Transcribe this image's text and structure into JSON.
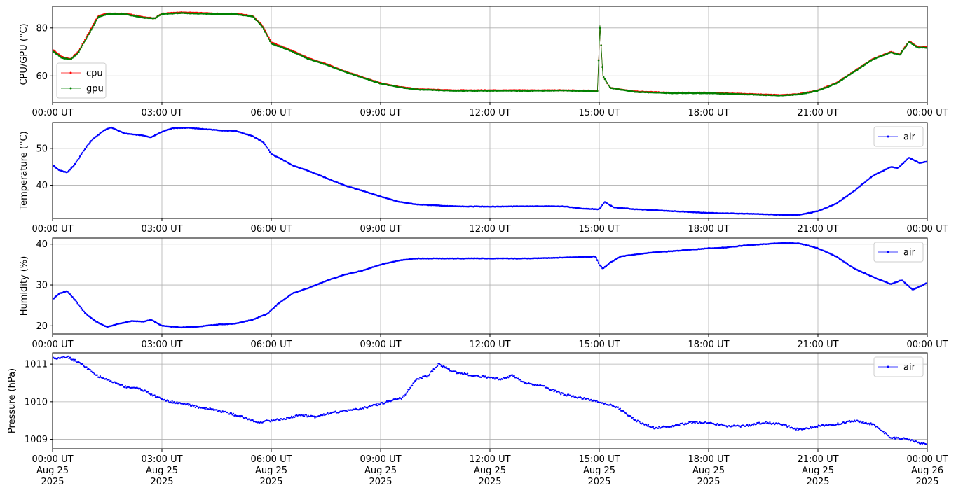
{
  "x_axis": {
    "range_hours": [
      0,
      24
    ],
    "ticks_hours": [
      0,
      3,
      6,
      9,
      12,
      15,
      18,
      21,
      24
    ],
    "time_labels": [
      "00:00 UT",
      "03:00 UT",
      "06:00 UT",
      "09:00 UT",
      "12:00 UT",
      "15:00 UT",
      "18:00 UT",
      "21:00 UT",
      "00:00 UT"
    ],
    "date_labels": [
      "Aug 25",
      "Aug 25",
      "Aug 25",
      "Aug 25",
      "Aug 25",
      "Aug 25",
      "Aug 25",
      "Aug 25",
      "Aug 26"
    ],
    "year_labels": [
      "2025",
      "2025",
      "2025",
      "2025",
      "2025",
      "2025",
      "2025",
      "2025",
      "2025"
    ]
  },
  "chart_data": [
    {
      "type": "line",
      "ylabel": "CPU/GPU (°C)",
      "ylim": [
        49,
        89
      ],
      "yticks": [
        60,
        80
      ],
      "grid": true,
      "legend": "lower-left",
      "series": [
        {
          "name": "cpu",
          "color": "#ff0000",
          "points": [
            [
              0,
              71
            ],
            [
              0.25,
              68
            ],
            [
              0.5,
              67
            ],
            [
              0.7,
              70
            ],
            [
              1,
              78
            ],
            [
              1.25,
              85
            ],
            [
              1.5,
              86
            ],
            [
              2,
              86
            ],
            [
              2.5,
              84.5
            ],
            [
              2.8,
              84
            ],
            [
              3,
              86
            ],
            [
              3.5,
              86.5
            ],
            [
              4,
              86.3
            ],
            [
              4.5,
              86
            ],
            [
              5,
              86
            ],
            [
              5.5,
              85
            ],
            [
              5.75,
              81
            ],
            [
              6,
              74
            ],
            [
              6.5,
              71
            ],
            [
              7,
              67.5
            ],
            [
              7.5,
              65
            ],
            [
              8,
              62
            ],
            [
              8.5,
              59.5
            ],
            [
              9,
              57
            ],
            [
              9.5,
              55.5
            ],
            [
              10,
              54.5
            ],
            [
              11,
              54
            ],
            [
              12,
              54
            ],
            [
              13,
              54
            ],
            [
              14,
              54
            ],
            [
              14.95,
              53.8
            ],
            [
              15.02,
              81
            ],
            [
              15.1,
              60
            ],
            [
              15.3,
              55
            ],
            [
              16,
              53.5
            ],
            [
              17,
              53
            ],
            [
              18,
              53
            ],
            [
              19,
              52.5
            ],
            [
              20,
              52
            ],
            [
              20.5,
              52.5
            ],
            [
              21,
              54
            ],
            [
              21.5,
              57
            ],
            [
              22,
              62
            ],
            [
              22.5,
              67
            ],
            [
              23,
              70
            ],
            [
              23.25,
              69
            ],
            [
              23.5,
              74.5
            ],
            [
              23.75,
              72
            ],
            [
              24,
              72
            ]
          ]
        },
        {
          "name": "gpu",
          "color": "#008000",
          "points": [
            [
              0,
              70.5
            ],
            [
              0.25,
              67.5
            ],
            [
              0.5,
              66.8
            ],
            [
              0.7,
              69.5
            ],
            [
              1,
              77.5
            ],
            [
              1.25,
              84.5
            ],
            [
              1.5,
              85.8
            ],
            [
              2,
              85.7
            ],
            [
              2.5,
              84.2
            ],
            [
              2.8,
              84
            ],
            [
              3,
              85.8
            ],
            [
              3.5,
              86.2
            ],
            [
              4,
              86
            ],
            [
              4.5,
              85.8
            ],
            [
              5,
              85.8
            ],
            [
              5.5,
              84.7
            ],
            [
              5.75,
              80.7
            ],
            [
              6,
              73.5
            ],
            [
              6.5,
              70.7
            ],
            [
              7,
              67.2
            ],
            [
              7.5,
              64.7
            ],
            [
              8,
              61.8
            ],
            [
              8.5,
              59.3
            ],
            [
              9,
              56.8
            ],
            [
              9.5,
              55.3
            ],
            [
              10,
              54.3
            ],
            [
              11,
              53.8
            ],
            [
              12,
              53.8
            ],
            [
              13,
              53.8
            ],
            [
              14,
              53.9
            ],
            [
              14.95,
              53.6
            ],
            [
              15.02,
              81
            ],
            [
              15.1,
              60
            ],
            [
              15.3,
              55
            ],
            [
              16,
              53.3
            ],
            [
              17,
              52.8
            ],
            [
              18,
              52.8
            ],
            [
              19,
              52.3
            ],
            [
              20,
              51.8
            ],
            [
              20.5,
              52.3
            ],
            [
              21,
              53.8
            ],
            [
              21.5,
              56.8
            ],
            [
              22,
              61.8
            ],
            [
              22.5,
              66.8
            ],
            [
              23,
              69.8
            ],
            [
              23.25,
              68.8
            ],
            [
              23.5,
              74.2
            ],
            [
              23.75,
              71.8
            ],
            [
              24,
              71.8
            ]
          ]
        }
      ]
    },
    {
      "type": "line",
      "ylabel": "Temperature (°C)",
      "ylim": [
        31,
        57
      ],
      "yticks": [
        40,
        50
      ],
      "grid": true,
      "legend": "upper-right",
      "series": [
        {
          "name": "air",
          "color": "#0000ff",
          "points": [
            [
              0,
              45.5
            ],
            [
              0.2,
              44
            ],
            [
              0.4,
              43.5
            ],
            [
              0.6,
              45.5
            ],
            [
              0.9,
              50
            ],
            [
              1.1,
              52.5
            ],
            [
              1.4,
              54.8
            ],
            [
              1.6,
              55.7
            ],
            [
              1.8,
              54.8
            ],
            [
              2,
              54
            ],
            [
              2.5,
              53.5
            ],
            [
              2.7,
              53
            ],
            [
              3,
              54.5
            ],
            [
              3.3,
              55.5
            ],
            [
              3.7,
              55.6
            ],
            [
              4.2,
              55.2
            ],
            [
              4.7,
              54.8
            ],
            [
              5,
              54.8
            ],
            [
              5.5,
              53.3
            ],
            [
              5.8,
              51.5
            ],
            [
              6,
              48.5
            ],
            [
              6.3,
              47
            ],
            [
              6.6,
              45.3
            ],
            [
              7,
              44
            ],
            [
              7.5,
              42
            ],
            [
              8,
              40
            ],
            [
              8.5,
              38.5
            ],
            [
              9,
              37
            ],
            [
              9.5,
              35.5
            ],
            [
              10,
              34.8
            ],
            [
              11,
              34.3
            ],
            [
              12,
              34.2
            ],
            [
              13,
              34.3
            ],
            [
              14,
              34.3
            ],
            [
              14.5,
              33.7
            ],
            [
              15,
              33.5
            ],
            [
              15.15,
              35.5
            ],
            [
              15.4,
              34
            ],
            [
              16,
              33.5
            ],
            [
              17,
              33
            ],
            [
              18,
              32.5
            ],
            [
              19,
              32.3
            ],
            [
              20,
              32
            ],
            [
              20.5,
              32
            ],
            [
              21,
              33
            ],
            [
              21.5,
              35
            ],
            [
              22,
              38.5
            ],
            [
              22.5,
              42.5
            ],
            [
              23,
              45
            ],
            [
              23.2,
              44.7
            ],
            [
              23.5,
              47.5
            ],
            [
              23.8,
              46
            ],
            [
              24,
              46.5
            ]
          ]
        }
      ]
    },
    {
      "type": "line",
      "ylabel": "Humidity (%)",
      "ylim": [
        18,
        41.5
      ],
      "yticks": [
        20,
        30,
        40
      ],
      "grid": true,
      "legend": "upper-right",
      "series": [
        {
          "name": "air",
          "color": "#0000ff",
          "points": [
            [
              0,
              26.5
            ],
            [
              0.2,
              28
            ],
            [
              0.4,
              28.5
            ],
            [
              0.6,
              26.5
            ],
            [
              0.9,
              23
            ],
            [
              1.2,
              21
            ],
            [
              1.5,
              19.7
            ],
            [
              1.8,
              20.5
            ],
            [
              2.2,
              21.2
            ],
            [
              2.5,
              21
            ],
            [
              2.7,
              21.5
            ],
            [
              3,
              20
            ],
            [
              3.5,
              19.6
            ],
            [
              4,
              19.8
            ],
            [
              4.5,
              20.3
            ],
            [
              5,
              20.5
            ],
            [
              5.5,
              21.5
            ],
            [
              5.9,
              23
            ],
            [
              6.2,
              25.5
            ],
            [
              6.6,
              28
            ],
            [
              7,
              29.2
            ],
            [
              7.5,
              31
            ],
            [
              8,
              32.5
            ],
            [
              8.5,
              33.5
            ],
            [
              9,
              35
            ],
            [
              9.5,
              36
            ],
            [
              10,
              36.5
            ],
            [
              11,
              36.5
            ],
            [
              12,
              36.5
            ],
            [
              13,
              36.5
            ],
            [
              14,
              36.7
            ],
            [
              14.9,
              37
            ],
            [
              15,
              35
            ],
            [
              15.1,
              34
            ],
            [
              15.3,
              35.5
            ],
            [
              15.6,
              37
            ],
            [
              16,
              37.5
            ],
            [
              16.5,
              38
            ],
            [
              17,
              38.3
            ],
            [
              18,
              39
            ],
            [
              18.5,
              39.2
            ],
            [
              19,
              39.7
            ],
            [
              19.5,
              40
            ],
            [
              20,
              40.3
            ],
            [
              20.5,
              40.2
            ],
            [
              21,
              39
            ],
            [
              21.5,
              37
            ],
            [
              22,
              34
            ],
            [
              22.5,
              32
            ],
            [
              23,
              30.2
            ],
            [
              23.3,
              31.2
            ],
            [
              23.6,
              28.8
            ],
            [
              24,
              30.5
            ]
          ]
        }
      ]
    },
    {
      "type": "scatter",
      "ylabel": "Pressure (hPa)",
      "ylim": [
        1008.75,
        1011.3
      ],
      "yticks": [
        1009,
        1010,
        1011
      ],
      "grid": true,
      "legend": "upper-right",
      "series": [
        {
          "name": "air",
          "color": "#0000ff",
          "points": [
            [
              0,
              1011.15
            ],
            [
              0.4,
              1011.2
            ],
            [
              0.8,
              1011
            ],
            [
              1.2,
              1010.7
            ],
            [
              1.6,
              1010.55
            ],
            [
              2,
              1010.4
            ],
            [
              2.4,
              1010.35
            ],
            [
              2.8,
              1010.15
            ],
            [
              3.2,
              1010
            ],
            [
              3.6,
              1009.95
            ],
            [
              4,
              1009.85
            ],
            [
              4.4,
              1009.8
            ],
            [
              4.8,
              1009.7
            ],
            [
              5.2,
              1009.6
            ],
            [
              5.6,
              1009.45
            ],
            [
              6,
              1009.5
            ],
            [
              6.4,
              1009.55
            ],
            [
              6.8,
              1009.65
            ],
            [
              7.2,
              1009.6
            ],
            [
              7.6,
              1009.7
            ],
            [
              8,
              1009.75
            ],
            [
              8.4,
              1009.8
            ],
            [
              8.8,
              1009.9
            ],
            [
              9.2,
              1010
            ],
            [
              9.6,
              1010.1
            ],
            [
              10,
              1010.6
            ],
            [
              10.3,
              1010.7
            ],
            [
              10.6,
              1011
            ],
            [
              11,
              1010.8
            ],
            [
              11.5,
              1010.7
            ],
            [
              12,
              1010.65
            ],
            [
              12.3,
              1010.6
            ],
            [
              12.6,
              1010.7
            ],
            [
              13,
              1010.5
            ],
            [
              13.5,
              1010.4
            ],
            [
              14,
              1010.2
            ],
            [
              14.5,
              1010.1
            ],
            [
              15,
              1010
            ],
            [
              15.5,
              1009.85
            ],
            [
              16,
              1009.5
            ],
            [
              16.5,
              1009.3
            ],
            [
              17,
              1009.35
            ],
            [
              17.5,
              1009.45
            ],
            [
              18,
              1009.45
            ],
            [
              18.5,
              1009.35
            ],
            [
              19,
              1009.35
            ],
            [
              19.5,
              1009.45
            ],
            [
              20,
              1009.4
            ],
            [
              20.5,
              1009.25
            ],
            [
              21,
              1009.35
            ],
            [
              21.5,
              1009.4
            ],
            [
              22,
              1009.5
            ],
            [
              22.5,
              1009.4
            ],
            [
              23,
              1009.05
            ],
            [
              23.5,
              1009
            ],
            [
              24,
              1008.85
            ]
          ]
        }
      ]
    }
  ]
}
